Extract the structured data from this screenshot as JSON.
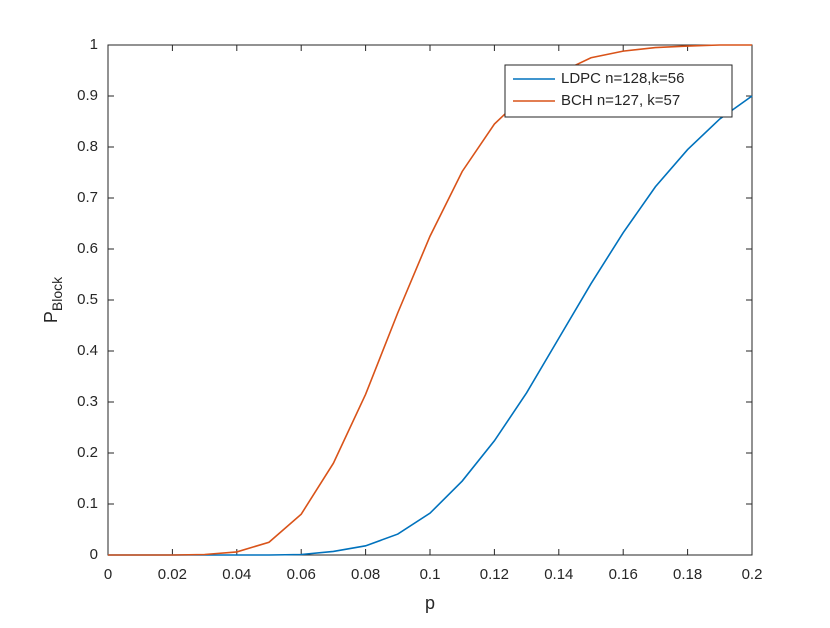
{
  "chart_data": {
    "type": "line",
    "xlabel": "p",
    "ylabel": {
      "text": "P",
      "subscript": "Block"
    },
    "x": [
      0,
      0.01,
      0.02,
      0.03,
      0.04,
      0.05,
      0.06,
      0.07,
      0.08,
      0.09,
      0.1,
      0.11,
      0.12,
      0.13,
      0.14,
      0.15,
      0.16,
      0.17,
      0.18,
      0.19,
      0.2
    ],
    "series": [
      {
        "name": "LDPC n=128,k=56",
        "color": "#0072bd",
        "values": [
          0,
          0,
          0,
          0,
          0,
          0,
          0.001,
          0.007,
          0.018,
          0.041,
          0.082,
          0.145,
          0.224,
          0.318,
          0.425,
          0.532,
          0.632,
          0.722,
          0.795,
          0.855,
          0.9
        ]
      },
      {
        "name": "BCH n=127, k=57",
        "color": "#d95319",
        "values": [
          0,
          0,
          0,
          0.001,
          0.006,
          0.025,
          0.08,
          0.18,
          0.315,
          0.475,
          0.625,
          0.752,
          0.845,
          0.905,
          0.945,
          0.975,
          0.988,
          0.995,
          0.998,
          1,
          1
        ]
      }
    ],
    "xlim": [
      0,
      0.2
    ],
    "xticks": [
      0,
      0.02,
      0.04,
      0.06,
      0.08,
      0.1,
      0.12,
      0.14,
      0.16,
      0.18,
      0.2
    ],
    "ylim": [
      0,
      1
    ],
    "yticks": [
      0,
      0.1,
      0.2,
      0.3,
      0.4,
      0.5,
      0.6,
      0.7,
      0.8,
      0.9,
      1
    ],
    "grid": false,
    "legend": "northeast"
  }
}
